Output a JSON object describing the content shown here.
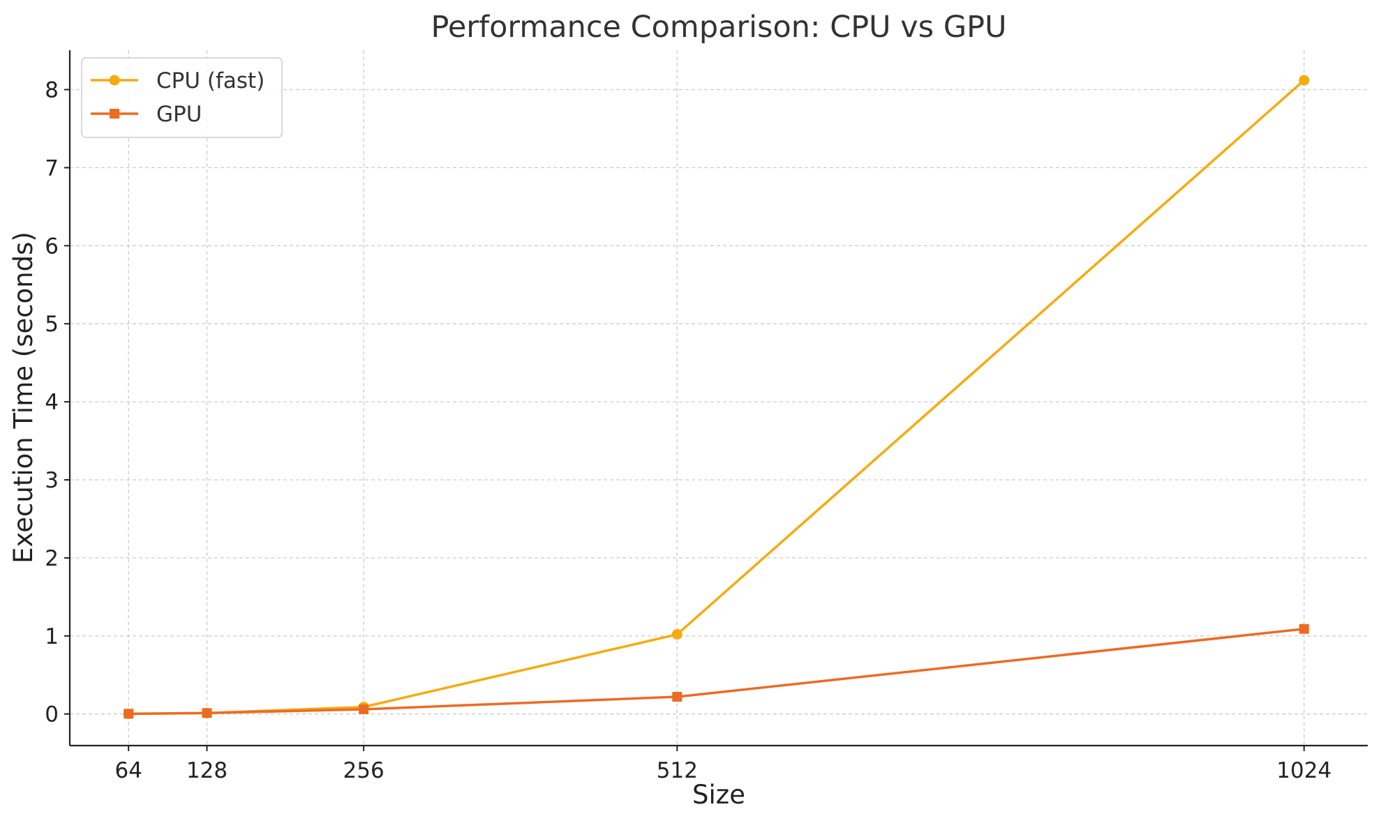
{
  "chart_data": {
    "type": "line",
    "title": "Performance Comparison: CPU vs GPU",
    "xlabel": "Size",
    "ylabel": "Execution Time (seconds)",
    "x": [
      64,
      128,
      256,
      512,
      1024
    ],
    "x_tick_labels": [
      "64",
      "128",
      "256",
      "512",
      "1024"
    ],
    "xlim": [
      16,
      1076
    ],
    "y_ticks": [
      0,
      1,
      2,
      3,
      4,
      5,
      6,
      7,
      8
    ],
    "y_tick_labels": [
      "0",
      "1",
      "2",
      "3",
      "4",
      "5",
      "6",
      "7",
      "8"
    ],
    "ylim": [
      -0.405,
      8.505
    ],
    "grid": true,
    "legend_position": "top-left",
    "series": [
      {
        "name": "CPU (fast)",
        "values": [
          0.001,
          0.012,
          0.09,
          1.02,
          8.12
        ],
        "color": "#f5ab0f",
        "marker": "circle"
      },
      {
        "name": "GPU",
        "values": [
          0.003,
          0.012,
          0.06,
          0.22,
          1.09
        ],
        "color": "#ec6b24",
        "marker": "square"
      }
    ]
  }
}
